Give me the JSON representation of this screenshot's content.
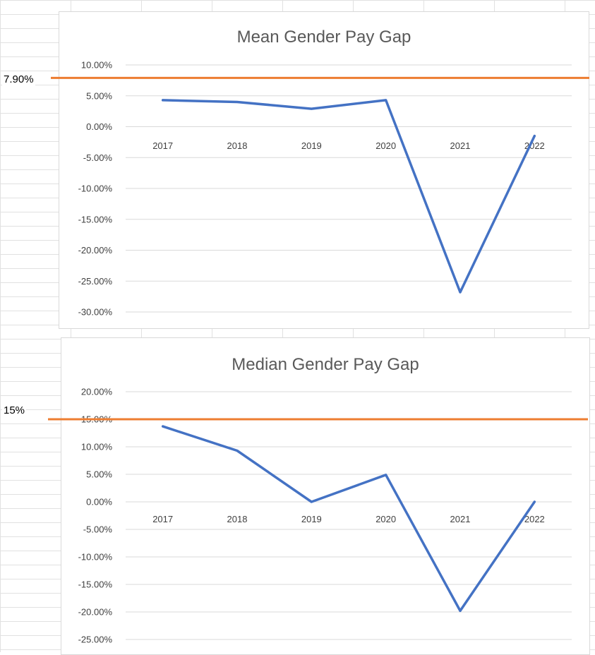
{
  "colors": {
    "series_line": "#4472c4",
    "reference_line": "#ed7d31",
    "gridline": "#d9d9d9",
    "sheet_grid": "#e1e1e1",
    "text": "#404040",
    "title": "#595959"
  },
  "reference_labels": [
    "7.90%",
    "15%"
  ],
  "chart_data": [
    {
      "type": "line",
      "title": "Mean Gender Pay Gap",
      "categories": [
        "2017",
        "2018",
        "2019",
        "2020",
        "2021",
        "2022"
      ],
      "series": [
        {
          "values": [
            4.3,
            4.0,
            2.9,
            4.3,
            -26.8,
            -1.5
          ]
        }
      ],
      "reference_line": {
        "value": 7.9,
        "label": "7.90%"
      },
      "ylim": [
        -30,
        10
      ],
      "ytick_step": 5,
      "ytick_labels": [
        "10.00%",
        "5.00%",
        "0.00%",
        "-5.00%",
        "-10.00%",
        "-15.00%",
        "-20.00%",
        "-25.00%",
        "-30.00%"
      ],
      "grid": true,
      "legend": "none",
      "xlabel": "",
      "ylabel": ""
    },
    {
      "type": "line",
      "title": "Median Gender Pay Gap",
      "categories": [
        "2017",
        "2018",
        "2019",
        "2020",
        "2021",
        "2022"
      ],
      "series": [
        {
          "values": [
            13.7,
            9.3,
            0.0,
            4.9,
            -19.8,
            0.0
          ]
        }
      ],
      "reference_line": {
        "value": 15,
        "label": "15%"
      },
      "ylim": [
        -25,
        20
      ],
      "ytick_step": 5,
      "ytick_labels": [
        "20.00%",
        "15.00%",
        "10.00%",
        "5.00%",
        "0.00%",
        "-5.00%",
        "-10.00%",
        "-15.00%",
        "-20.00%",
        "-25.00%"
      ],
      "grid": true,
      "legend": "none",
      "xlabel": "",
      "ylabel": ""
    }
  ]
}
